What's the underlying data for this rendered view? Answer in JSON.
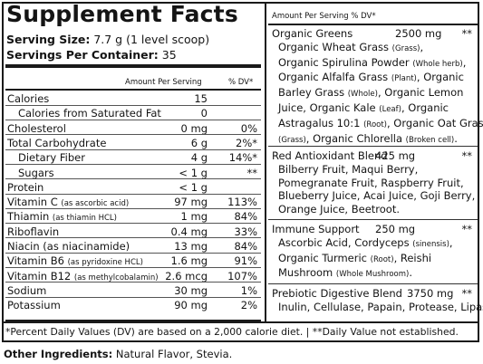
{
  "panel": {
    "title": "Supplement Facts",
    "serving_size_label": "Serving Size:",
    "serving_size_value": "7.7 g (1 level scoop)",
    "servings_label": "Servings Per Container:",
    "servings_value": "35",
    "amount_header": "Amount Per Serving",
    "dv_header": "% DV*"
  },
  "nutrients": [
    {
      "name": "Calories",
      "note": "",
      "amount": "15",
      "dv": "",
      "indent": false
    },
    {
      "name": "Calories from Saturated Fat",
      "note": "",
      "amount": "0",
      "dv": "",
      "indent": true
    },
    {
      "name": "Cholesterol",
      "note": "",
      "amount": "0 mg",
      "dv": "0%",
      "indent": false
    },
    {
      "name": "Total Carbohydrate",
      "note": "",
      "amount": "6 g",
      "dv": "2%*",
      "indent": false
    },
    {
      "name": "Dietary Fiber",
      "note": "",
      "amount": "4 g",
      "dv": "14%*",
      "indent": true
    },
    {
      "name": "Sugars",
      "note": "",
      "amount": "< 1 g",
      "dv": "**",
      "indent": true
    },
    {
      "name": "Protein",
      "note": "",
      "amount": "< 1 g",
      "dv": "",
      "indent": false
    },
    {
      "name": "Vitamin C",
      "note": "(as ascorbic acid)",
      "amount": "97 mg",
      "dv": "113%",
      "indent": false
    },
    {
      "name": "Thiamin",
      "note": "(as thiamin HCL)",
      "amount": "1 mg",
      "dv": "84%",
      "indent": false
    },
    {
      "name": "Riboflavin",
      "note": "",
      "amount": "0.4 mg",
      "dv": "33%",
      "indent": false
    },
    {
      "name": "Niacin (as niacinamide)",
      "note": "",
      "amount": "13 mg",
      "dv": "84%",
      "indent": false
    },
    {
      "name": "Vitamin B6",
      "note": "(as pyridoxine HCL)",
      "amount": "1.6 mg",
      "dv": "91%",
      "indent": false
    },
    {
      "name": "Vitamin B12",
      "note": "(as methylcobalamin)",
      "amount": "2.6 mcg",
      "dv": "107%",
      "indent": false
    },
    {
      "name": "Sodium",
      "note": "",
      "amount": "30 mg",
      "dv": "1%",
      "indent": false
    },
    {
      "name": "Potassium",
      "note": "",
      "amount": "90 mg",
      "dv": "2%",
      "indent": false
    }
  ],
  "right_header": "Amount Per Serving  % DV*",
  "blends": [
    {
      "name": "Organic Greens",
      "amount": "2500 mg",
      "dv": "**",
      "lines": [
        [
          {
            "t": "Organic Wheat Grass "
          },
          {
            "s": "(Grass)"
          },
          {
            "t": ","
          }
        ],
        [
          {
            "t": "Organic Spirulina Powder "
          },
          {
            "s": "(Whole herb)"
          },
          {
            "t": ","
          }
        ],
        [
          {
            "t": "Organic Alfalfa Grass "
          },
          {
            "s": "(Plant)"
          },
          {
            "t": ", Organic"
          }
        ],
        [
          {
            "t": "Barley Grass "
          },
          {
            "s": "(Whole)"
          },
          {
            "t": ", Organic Lemon"
          }
        ],
        [
          {
            "t": "Juice, Organic Kale "
          },
          {
            "s": "(Leaf)"
          },
          {
            "t": ", Organic"
          }
        ],
        [
          {
            "t": "Astragalus 10:1 "
          },
          {
            "s": "(Root)"
          },
          {
            "t": ", Organic Oat Grass"
          }
        ],
        [
          {
            "s": "(Grass)"
          },
          {
            "t": ", Organic Chlorella "
          },
          {
            "s": "(Broken cell)"
          },
          {
            "t": "."
          }
        ]
      ]
    },
    {
      "name": "Red Antioxidant Blend",
      "amount": "425 mg",
      "dv": "**",
      "lines": [
        [
          {
            "t": "Bilberry Fruit, Maqui Berry,"
          }
        ],
        [
          {
            "t": "Pomegranate Fruit, Raspberry Fruit,"
          }
        ],
        [
          {
            "t": "Blueberry Juice, Acai Juice, Goji Berry,"
          }
        ],
        [
          {
            "t": "Orange Juice, Beetroot."
          }
        ]
      ]
    },
    {
      "name": "Immune Support",
      "amount": "250 mg",
      "dv": "**",
      "lines": [
        [
          {
            "t": "Ascorbic Acid, Cordyceps "
          },
          {
            "s": "(sinensis)"
          },
          {
            "t": ","
          }
        ],
        [
          {
            "t": "Organic Turmeric "
          },
          {
            "s": "(Root)"
          },
          {
            "t": ", Reishi"
          }
        ],
        [
          {
            "t": "Mushroom "
          },
          {
            "s": "(Whole Mushroom)"
          },
          {
            "t": "."
          }
        ]
      ]
    },
    {
      "name": "Prebiotic Digestive Blend",
      "amount": "3750 mg",
      "dv": "**",
      "lines": [
        [
          {
            "t": "Inulin, Cellulase, Papain, Protease, Lipase."
          }
        ]
      ]
    }
  ],
  "footnote": "*Percent Daily Values (DV) are based on a 2,000 calorie diet.  |  **Daily Value not established.",
  "other_ingredients_label": "Other Ingredients:",
  "other_ingredients_value": "Natural Flavor, Stevia."
}
